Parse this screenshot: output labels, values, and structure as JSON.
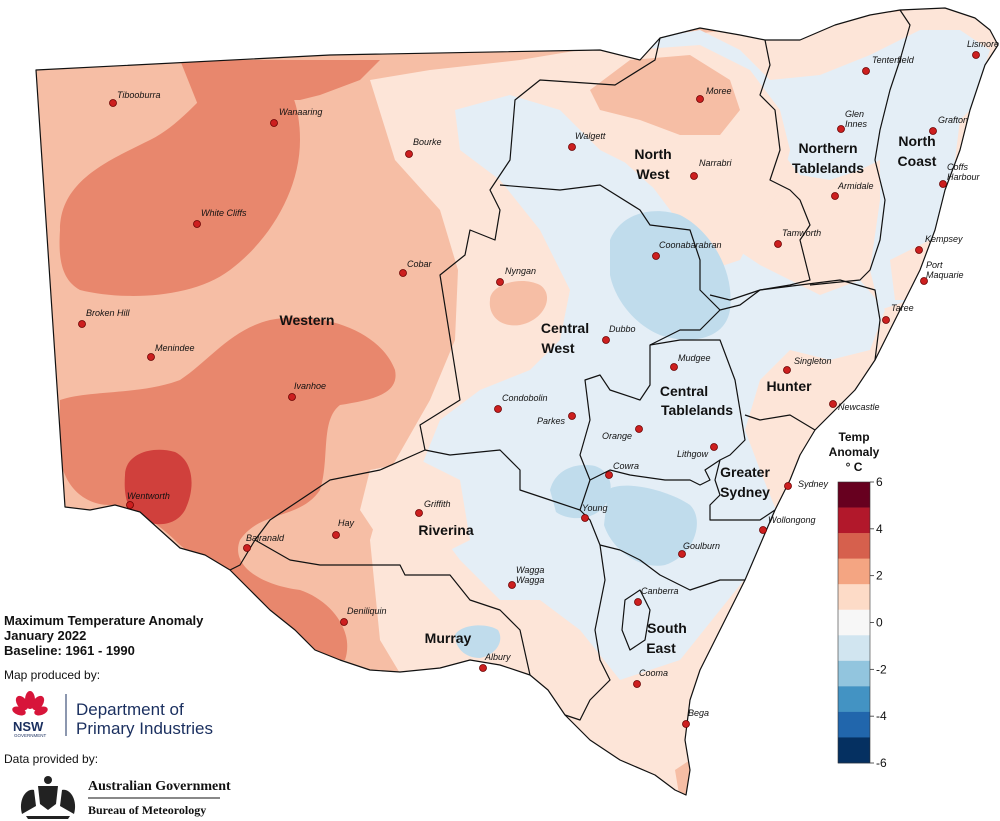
{
  "title_lines": [
    "Maximum Temperature Anomaly",
    "January 2022",
    "Baseline: 1961 - 1990"
  ],
  "produced_by": "Map produced by:",
  "provided_by": "Data provided by:",
  "logos": {
    "nsw": "NSW",
    "nsw_sub": "GOVERNMENT",
    "dpi_line1": "Department of",
    "dpi_line2": "Primary Industries",
    "bom_line1": "Australian Government",
    "bom_line2": "Bureau of Meteorology"
  },
  "legend": {
    "title_lines": [
      "Temp",
      "Anomaly",
      "° C"
    ],
    "ticks": [
      "6",
      "4",
      "2",
      "0",
      "-2",
      "-4",
      "-6"
    ],
    "colors": [
      "#67001f",
      "#b2182b",
      "#d6604d",
      "#f4a582",
      "#fddbc7",
      "#f7f7f7",
      "#d1e5f0",
      "#92c5de",
      "#4393c3",
      "#2166ac",
      "#053061"
    ]
  },
  "colors": {
    "anomaly_0_2": "#fde5d8",
    "anomaly_2_4": "#f6bea5",
    "anomaly_4_6": "#e8876d",
    "anomaly_6_8": "#d0403c",
    "anomaly_m0_2": "#e4eef6",
    "anomaly_m2_4": "#c0dcec"
  },
  "regions": [
    {
      "name": "Western",
      "lines": [
        "Western"
      ]
    },
    {
      "name": "North West",
      "lines": [
        "North",
        "West"
      ]
    },
    {
      "name": "Northern Tablelands",
      "lines": [
        "Northern",
        "Tablelands"
      ]
    },
    {
      "name": "North Coast",
      "lines": [
        "North",
        "Coast"
      ]
    },
    {
      "name": "Central West",
      "lines": [
        "Central",
        "West"
      ]
    },
    {
      "name": "Central Tablelands",
      "lines": [
        "Central",
        "Tablelands"
      ]
    },
    {
      "name": "Hunter",
      "lines": [
        "Hunter"
      ]
    },
    {
      "name": "Greater Sydney",
      "lines": [
        "Greater",
        "Sydney"
      ]
    },
    {
      "name": "Riverina",
      "lines": [
        "Riverina"
      ]
    },
    {
      "name": "Murray",
      "lines": [
        "Murray"
      ]
    },
    {
      "name": "South East",
      "lines": [
        "South",
        "East"
      ]
    }
  ],
  "towns": [
    {
      "name": "Tibooburra"
    },
    {
      "name": "Wanaaring"
    },
    {
      "name": "Bourke"
    },
    {
      "name": "White Cliffs"
    },
    {
      "name": "Cobar"
    },
    {
      "name": "Broken Hill"
    },
    {
      "name": "Menindee"
    },
    {
      "name": "Ivanhoe"
    },
    {
      "name": "Wentworth"
    },
    {
      "name": "Balranald"
    },
    {
      "name": "Hay"
    },
    {
      "name": "Griffith"
    },
    {
      "name": "Deniliquin"
    },
    {
      "name": "Albury"
    },
    {
      "name": "Wagga Wagga"
    },
    {
      "name": "Nyngan"
    },
    {
      "name": "Condobolin"
    },
    {
      "name": "Parkes"
    },
    {
      "name": "Dubbo"
    },
    {
      "name": "Walgett"
    },
    {
      "name": "Moree"
    },
    {
      "name": "Narrabri"
    },
    {
      "name": "Coonabarabran"
    },
    {
      "name": "Tenterfield"
    },
    {
      "name": "Glen Innes"
    },
    {
      "name": "Armidale"
    },
    {
      "name": "Tamworth"
    },
    {
      "name": "Lismore"
    },
    {
      "name": "Grafton"
    },
    {
      "name": "Coffs Harbour"
    },
    {
      "name": "Kempsey"
    },
    {
      "name": "Port Maquarie"
    },
    {
      "name": "Taree"
    },
    {
      "name": "Singleton"
    },
    {
      "name": "Newcastle"
    },
    {
      "name": "Mudgee"
    },
    {
      "name": "Orange"
    },
    {
      "name": "Lithgow"
    },
    {
      "name": "Cowra"
    },
    {
      "name": "Young"
    },
    {
      "name": "Sydney"
    },
    {
      "name": "Wollongong"
    },
    {
      "name": "Goulburn"
    },
    {
      "name": "Canberra"
    },
    {
      "name": "Cooma"
    },
    {
      "name": "Bega"
    }
  ]
}
